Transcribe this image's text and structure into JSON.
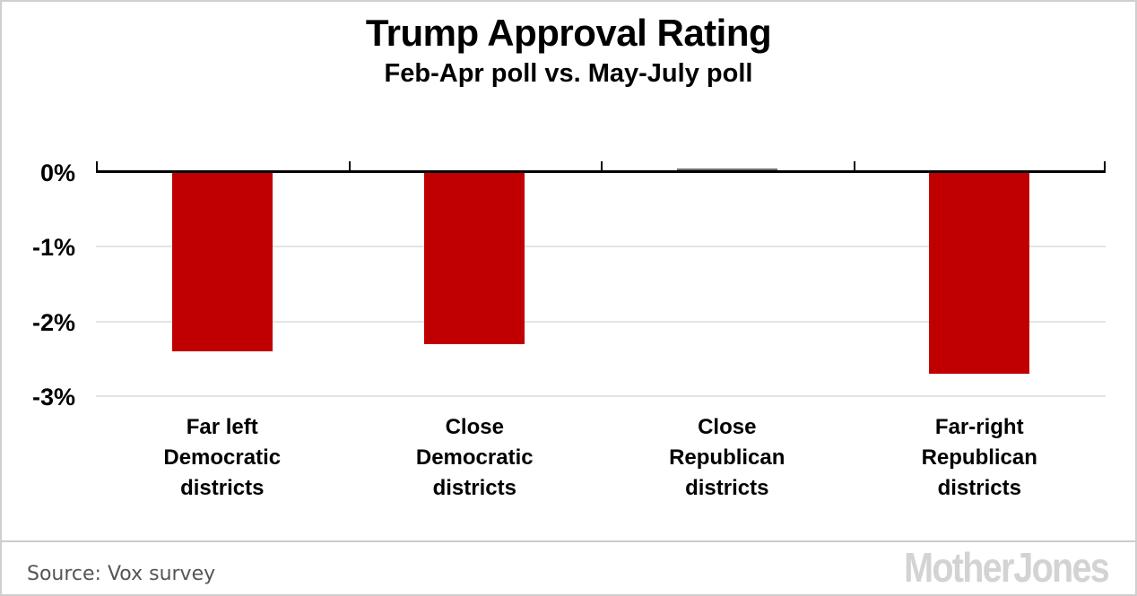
{
  "page": {
    "background": "#ffffff",
    "border_color": "#cfcfcf"
  },
  "header": {
    "title": "Trump Approval Rating",
    "subtitle": "Feb-Apr poll vs. May-July poll"
  },
  "chart_data": {
    "type": "bar",
    "title": "Trump Approval Rating",
    "subtitle": "Feb-Apr poll vs. May-July poll",
    "categories": [
      "Far left\nDemocratic\ndistricts",
      "Close\nDemocratic\ndistricts",
      "Close\nRepublican\ndistricts",
      "Far-right\nRepublican\ndistricts"
    ],
    "values": [
      -2.4,
      -2.3,
      0.05,
      -2.7
    ],
    "unit": "%",
    "bar_colors": [
      "#c00000",
      "#c00000",
      "#6e6e6e",
      "#c00000"
    ],
    "yticks": [
      {
        "label": "0%",
        "value": 0
      },
      {
        "label": "-1%",
        "value": -1
      },
      {
        "label": "-2%",
        "value": -2
      },
      {
        "label": "-3%",
        "value": -3
      }
    ],
    "ylim": [
      -3.3,
      0.4
    ],
    "grid": true,
    "legend": "none",
    "axis_color": "#000000",
    "gridline_color": "#e4e4e4",
    "label_color": "#000000"
  },
  "footer": {
    "source": "Source: Vox survey",
    "logo": "Mother Jones",
    "logo_color": "#d3d3d3",
    "source_color": "#555555"
  }
}
